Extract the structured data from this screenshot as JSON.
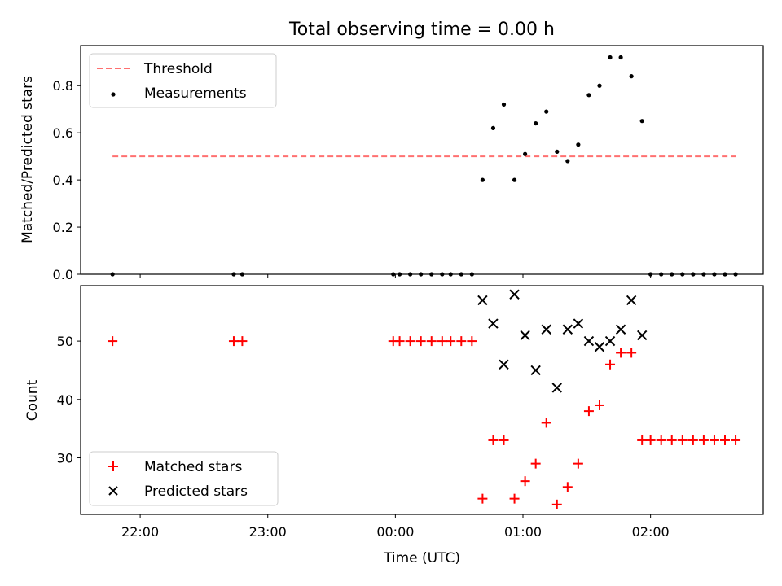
{
  "chart_data": {
    "title": "Total observing time = 0.00 h",
    "xlabel": "Time (UTC)",
    "xlim": [
      "21:32",
      "02:53"
    ],
    "xticks": [
      "22:00",
      "23:00",
      "00:00",
      "01:00",
      "02:00"
    ],
    "panels": [
      {
        "type": "scatter",
        "ylabel": "Matched/Predicted stars",
        "ylim": [
          0,
          0.97
        ],
        "yticks": [
          "0.0",
          "0.2",
          "0.4",
          "0.6",
          "0.8"
        ],
        "legend_position": "top-left",
        "lines": [
          {
            "name": "Threshold",
            "color": "#ff7070",
            "style": "dashed",
            "x": [
              "21:47",
              "02:40"
            ],
            "y": [
              0.5,
              0.5
            ]
          }
        ],
        "series": [
          {
            "name": "Measurements",
            "marker": "dot",
            "color": "#000000",
            "points": [
              {
                "x": "21:47",
                "y": 0
              },
              {
                "x": "22:44",
                "y": 0
              },
              {
                "x": "22:48",
                "y": 0
              },
              {
                "x": "23:59",
                "y": 0
              },
              {
                "x": "00:02",
                "y": 0
              },
              {
                "x": "00:07",
                "y": 0
              },
              {
                "x": "00:12",
                "y": 0
              },
              {
                "x": "00:17",
                "y": 0
              },
              {
                "x": "00:22",
                "y": 0
              },
              {
                "x": "00:26",
                "y": 0
              },
              {
                "x": "00:31",
                "y": 0
              },
              {
                "x": "00:36",
                "y": 0
              },
              {
                "x": "00:41",
                "y": 0.4
              },
              {
                "x": "00:46",
                "y": 0.62
              },
              {
                "x": "00:51",
                "y": 0.72
              },
              {
                "x": "00:56",
                "y": 0.4
              },
              {
                "x": "01:01",
                "y": 0.51
              },
              {
                "x": "01:06",
                "y": 0.64
              },
              {
                "x": "01:11",
                "y": 0.69
              },
              {
                "x": "01:16",
                "y": 0.52
              },
              {
                "x": "01:21",
                "y": 0.48
              },
              {
                "x": "01:26",
                "y": 0.55
              },
              {
                "x": "01:31",
                "y": 0.76
              },
              {
                "x": "01:36",
                "y": 0.8
              },
              {
                "x": "01:41",
                "y": 0.92
              },
              {
                "x": "01:46",
                "y": 0.92
              },
              {
                "x": "01:51",
                "y": 0.84
              },
              {
                "x": "01:56",
                "y": 0.65
              },
              {
                "x": "02:00",
                "y": 0
              },
              {
                "x": "02:05",
                "y": 0
              },
              {
                "x": "02:10",
                "y": 0
              },
              {
                "x": "02:15",
                "y": 0
              },
              {
                "x": "02:20",
                "y": 0
              },
              {
                "x": "02:25",
                "y": 0
              },
              {
                "x": "02:30",
                "y": 0
              },
              {
                "x": "02:35",
                "y": 0
              },
              {
                "x": "02:40",
                "y": 0
              }
            ]
          }
        ]
      },
      {
        "type": "scatter",
        "ylabel": "Count",
        "ylim": [
          20.3,
          59.5
        ],
        "yticks": [
          "30",
          "40",
          "50"
        ],
        "legend_position": "bottom-left",
        "series": [
          {
            "name": "Matched stars",
            "marker": "plus",
            "color": "#ff0000",
            "points": [
              {
                "x": "21:47",
                "y": 50
              },
              {
                "x": "22:44",
                "y": 50
              },
              {
                "x": "22:48",
                "y": 50
              },
              {
                "x": "23:59",
                "y": 50
              },
              {
                "x": "00:02",
                "y": 50
              },
              {
                "x": "00:07",
                "y": 50
              },
              {
                "x": "00:12",
                "y": 50
              },
              {
                "x": "00:17",
                "y": 50
              },
              {
                "x": "00:22",
                "y": 50
              },
              {
                "x": "00:26",
                "y": 50
              },
              {
                "x": "00:31",
                "y": 50
              },
              {
                "x": "00:36",
                "y": 50
              },
              {
                "x": "00:41",
                "y": 23
              },
              {
                "x": "00:46",
                "y": 33
              },
              {
                "x": "00:51",
                "y": 33
              },
              {
                "x": "00:56",
                "y": 23
              },
              {
                "x": "01:01",
                "y": 26
              },
              {
                "x": "01:06",
                "y": 29
              },
              {
                "x": "01:11",
                "y": 36
              },
              {
                "x": "01:16",
                "y": 22
              },
              {
                "x": "01:21",
                "y": 25
              },
              {
                "x": "01:26",
                "y": 29
              },
              {
                "x": "01:31",
                "y": 38
              },
              {
                "x": "01:36",
                "y": 39
              },
              {
                "x": "01:41",
                "y": 46
              },
              {
                "x": "01:46",
                "y": 48
              },
              {
                "x": "01:51",
                "y": 48
              },
              {
                "x": "01:56",
                "y": 33
              },
              {
                "x": "02:00",
                "y": 33
              },
              {
                "x": "02:05",
                "y": 33
              },
              {
                "x": "02:10",
                "y": 33
              },
              {
                "x": "02:15",
                "y": 33
              },
              {
                "x": "02:20",
                "y": 33
              },
              {
                "x": "02:25",
                "y": 33
              },
              {
                "x": "02:30",
                "y": 33
              },
              {
                "x": "02:35",
                "y": 33
              },
              {
                "x": "02:40",
                "y": 33
              }
            ]
          },
          {
            "name": "Predicted stars",
            "marker": "x",
            "color": "#000000",
            "points": [
              {
                "x": "00:41",
                "y": 57
              },
              {
                "x": "00:46",
                "y": 53
              },
              {
                "x": "00:51",
                "y": 46
              },
              {
                "x": "00:56",
                "y": 58
              },
              {
                "x": "01:01",
                "y": 51
              },
              {
                "x": "01:06",
                "y": 45
              },
              {
                "x": "01:11",
                "y": 52
              },
              {
                "x": "01:16",
                "y": 42
              },
              {
                "x": "01:21",
                "y": 52
              },
              {
                "x": "01:26",
                "y": 53
              },
              {
                "x": "01:31",
                "y": 50
              },
              {
                "x": "01:36",
                "y": 49
              },
              {
                "x": "01:41",
                "y": 50
              },
              {
                "x": "01:46",
                "y": 52
              },
              {
                "x": "01:51",
                "y": 57
              },
              {
                "x": "01:56",
                "y": 51
              }
            ]
          }
        ]
      }
    ]
  }
}
